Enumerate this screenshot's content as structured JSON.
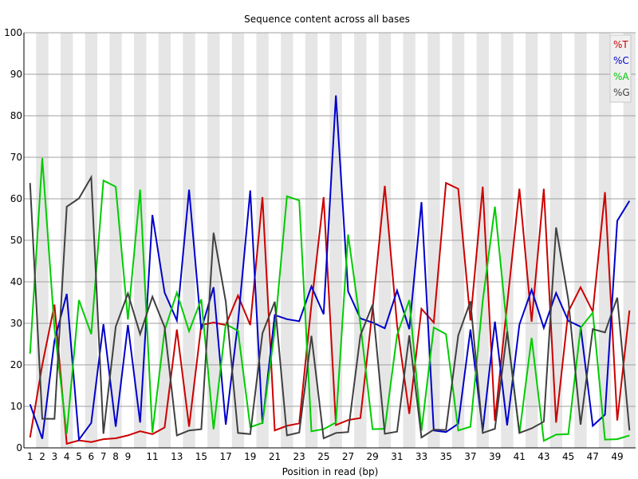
{
  "chart_data": {
    "type": "line",
    "title": "Sequence content across all bases",
    "xlabel": "Position in read (bp)",
    "ylabel": "",
    "ylim": [
      0,
      100
    ],
    "yticks": [
      0,
      10,
      20,
      30,
      40,
      50,
      60,
      70,
      80,
      90,
      100
    ],
    "x": [
      1,
      2,
      3,
      4,
      5,
      6,
      7,
      8,
      9,
      10,
      11,
      12,
      13,
      14,
      15,
      16,
      17,
      18,
      19,
      20,
      21,
      22,
      23,
      24,
      25,
      26,
      27,
      28,
      29,
      30,
      31,
      32,
      33,
      34,
      35,
      36,
      37,
      38,
      39,
      40,
      41,
      42,
      43,
      44,
      45,
      46,
      47,
      48,
      49,
      50
    ],
    "xtick_labels": [
      "1",
      "2",
      "3",
      "4",
      "5",
      "6",
      "7",
      "8",
      "9",
      "11",
      "13",
      "15",
      "17",
      "19",
      "21",
      "23",
      "25",
      "27",
      "29",
      "31",
      "33",
      "35",
      "37",
      "39",
      "41",
      "43",
      "45",
      "47",
      "49"
    ],
    "xtick_positions": [
      1,
      2,
      3,
      4,
      5,
      6,
      7,
      8,
      9,
      11,
      13,
      15,
      17,
      19,
      21,
      23,
      25,
      27,
      29,
      31,
      33,
      35,
      37,
      39,
      41,
      43,
      45,
      47,
      49
    ],
    "grid": "alternating vertical bands",
    "legend_position": "top-right",
    "series": [
      {
        "name": "%T",
        "color": "#cc0000",
        "values": [
          2.5,
          20,
          34.5,
          1,
          1.8,
          1.4,
          2.1,
          2.3,
          3,
          4,
          3.3,
          4.9,
          28.5,
          5.1,
          29.6,
          30.2,
          29.6,
          36.7,
          29.6,
          60.4,
          4.2,
          5.3,
          5.9,
          34.5,
          60.4,
          5.5,
          6.7,
          7.2,
          33.5,
          63.1,
          29.6,
          8.2,
          33.5,
          30.2,
          63.8,
          62.4,
          30.7,
          62.9,
          6.5,
          34.5,
          62.4,
          30.4,
          62.4,
          6.1,
          32.8,
          38.7,
          32.8,
          61.6,
          6.6,
          33.1
        ]
      },
      {
        "name": "%C",
        "color": "#0000cc",
        "values": [
          10.5,
          2.2,
          25.8,
          37.1,
          2,
          6,
          29.8,
          5.1,
          29.6,
          6.1,
          56.1,
          37.4,
          30.7,
          62.2,
          28.5,
          38.7,
          5.6,
          30.2,
          62,
          5.8,
          32,
          31,
          30.5,
          38.9,
          32.2,
          84.9,
          37.7,
          31.2,
          30.2,
          28.8,
          37.9,
          28.6,
          59.2,
          4.2,
          3.8,
          5.8,
          28.5,
          4.2,
          30.4,
          5.4,
          29.7,
          38.1,
          28.9,
          37.3,
          30.6,
          29.2,
          5.3,
          8,
          54.7,
          59.5
        ]
      },
      {
        "name": "%A",
        "color": "#00cc00",
        "values": [
          22.7,
          69.8,
          28.8,
          3.4,
          35.6,
          27.4,
          64.4,
          62.9,
          30.9,
          62.2,
          3.7,
          28.3,
          37.4,
          28.1,
          35.8,
          4.5,
          29.8,
          28.2,
          5,
          6,
          28.3,
          60.6,
          59.6,
          4,
          4.5,
          6.1,
          51.4,
          29.8,
          4.5,
          4.6,
          27.2,
          35.6,
          4.1,
          29,
          27.4,
          4.2,
          5.1,
          35.4,
          58.1,
          28.6,
          3.4,
          26.5,
          1.7,
          3.2,
          3.3,
          28.9,
          32.6,
          2,
          2.1,
          3
        ]
      },
      {
        "name": "%G",
        "color": "#404040",
        "values": [
          63.8,
          7,
          7,
          58.1,
          60.1,
          65.2,
          3.4,
          29.2,
          37.2,
          27.4,
          36.4,
          29.1,
          3,
          4.2,
          4.5,
          51.8,
          35.2,
          3.6,
          3.3,
          27.6,
          35.2,
          3,
          3.7,
          27,
          2.3,
          3.6,
          3.8,
          27.1,
          34.5,
          3.4,
          3.9,
          27.1,
          2.5,
          4.4,
          4.3,
          27.1,
          35.3,
          3.6,
          4.6,
          28,
          3.6,
          4.7,
          6.3,
          53.1,
          35.7,
          5.6,
          28.6,
          27.8,
          36.2,
          4.2
        ]
      }
    ]
  }
}
